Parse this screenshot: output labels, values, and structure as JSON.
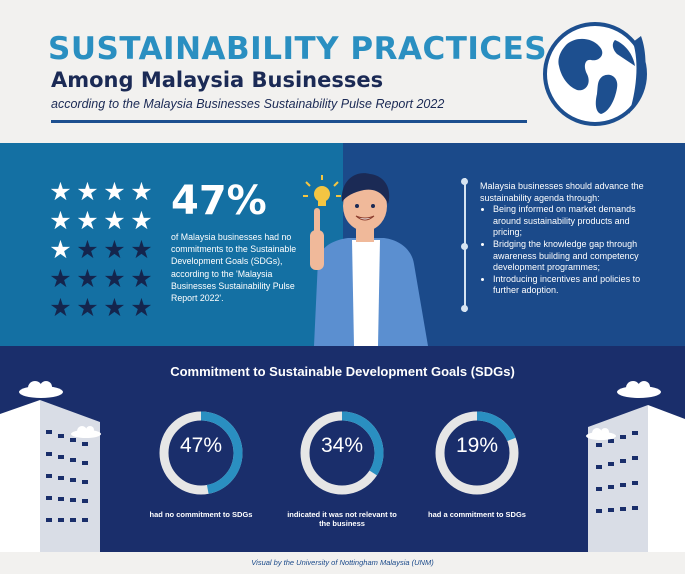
{
  "header": {
    "title": "SUSTAINABILITY PRACTICES",
    "subtitle": "Among Malaysia Businesses",
    "source_line": "according to the Malaysia Businesses Sustainability Pulse Report 2022"
  },
  "stat": {
    "percent": "47%",
    "description": "of Malaysia businesses had no commitments to the Sustainable Development Goals (SDGs), according to the 'Malaysia Businesses Sustainability Pulse Report 2022'.",
    "stars_total": 20,
    "stars_filled": 9
  },
  "advice": {
    "intro": "Malaysia businesses should advance the sustainability agenda through:",
    "items": [
      "Being informed on market demands around sustainability products and pricing;",
      "Bridging the knowledge gap through awareness building and competency development programmes;",
      "Introducing incentives and policies to further adoption."
    ]
  },
  "commitment": {
    "title": "Commitment to Sustainable Development Goals (SDGs)",
    "rings": [
      {
        "value": "47%",
        "fraction": 0.47,
        "label": "had no commitment to SDGs"
      },
      {
        "value": "34%",
        "fraction": 0.34,
        "label": "indicated it was not relevant to the business"
      },
      {
        "value": "19%",
        "fraction": 0.19,
        "label": "had a commitment to SDGs"
      }
    ]
  },
  "footer": {
    "credit": "Visual by the University of Nottingham Malaysia (UNM)"
  },
  "colors": {
    "accent": "#2a8fc1",
    "navy": "#1b2a55",
    "mid_blue": "#1470a3",
    "deep_blue": "#1b4a8a",
    "bottom_blue": "#1a2e6b",
    "ring_track": "#e6e6e6",
    "ring_fill": "#2a8fc1"
  }
}
